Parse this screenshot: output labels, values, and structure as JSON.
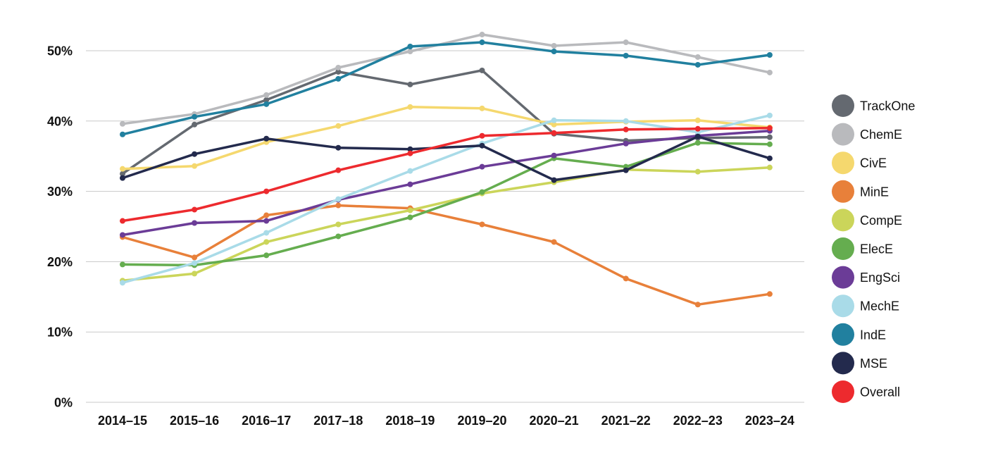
{
  "chart_data": {
    "type": "line",
    "title": "",
    "xlabel": "",
    "ylabel": "",
    "categories": [
      "2014–15",
      "2015–16",
      "2016–17",
      "2017–18",
      "2018–19",
      "2019–20",
      "2020–21",
      "2021–22",
      "2022–23",
      "2023–24"
    ],
    "ylim": [
      0,
      50
    ],
    "yticks": [
      {
        "value": 0,
        "label": "0%"
      },
      {
        "value": 10,
        "label": "10%"
      },
      {
        "value": 20,
        "label": "20%"
      },
      {
        "value": 30,
        "label": "30%"
      },
      {
        "value": 40,
        "label": "40%"
      },
      {
        "value": 50,
        "label": "50%"
      }
    ],
    "grid": true,
    "legend_position": "right",
    "series": [
      {
        "name": "TrackOne",
        "color": "#646970",
        "values": [
          32.5,
          39.5,
          43.0,
          47.0,
          45.2,
          47.2,
          38.2,
          37.2,
          37.6,
          37.7
        ]
      },
      {
        "name": "ChemE",
        "color": "#b9babd",
        "values": [
          39.6,
          41.0,
          43.7,
          47.6,
          49.9,
          52.3,
          50.7,
          51.2,
          49.1,
          46.9
        ]
      },
      {
        "name": "CivE",
        "color": "#f5d86e",
        "values": [
          33.2,
          33.6,
          37.0,
          39.3,
          42.0,
          41.8,
          39.5,
          39.9,
          40.1,
          39.1
        ]
      },
      {
        "name": "MinE",
        "color": "#e8803a",
        "values": [
          23.5,
          20.6,
          26.6,
          28.0,
          27.6,
          25.3,
          22.8,
          17.6,
          13.9,
          15.4
        ]
      },
      {
        "name": "CompE",
        "color": "#cbd55a",
        "values": [
          17.3,
          18.3,
          22.8,
          25.3,
          27.3,
          29.7,
          31.3,
          33.1,
          32.8,
          33.4
        ]
      },
      {
        "name": "ElecE",
        "color": "#65ad4f",
        "values": [
          19.6,
          19.5,
          20.9,
          23.6,
          26.3,
          29.9,
          34.7,
          33.5,
          36.9,
          36.7
        ]
      },
      {
        "name": "EngSci",
        "color": "#6b3c97",
        "values": [
          23.8,
          25.5,
          25.8,
          28.8,
          31.0,
          33.5,
          35.1,
          36.8,
          37.9,
          38.6
        ]
      },
      {
        "name": "MechE",
        "color": "#a9dbe8",
        "values": [
          17.0,
          19.8,
          24.1,
          28.9,
          32.9,
          36.8,
          40.1,
          40.0,
          38.4,
          40.8
        ]
      },
      {
        "name": "IndE",
        "color": "#21809f",
        "values": [
          38.1,
          40.6,
          42.4,
          46.0,
          50.6,
          51.2,
          49.9,
          49.3,
          48.0,
          49.4
        ]
      },
      {
        "name": "MSE",
        "color": "#232a4d",
        "values": [
          31.9,
          35.3,
          37.5,
          36.2,
          36.0,
          36.5,
          31.6,
          33.0,
          37.8,
          34.7
        ]
      },
      {
        "name": "Overall",
        "color": "#ed2a2e",
        "values": [
          25.8,
          27.4,
          30.0,
          33.0,
          35.4,
          37.9,
          38.3,
          38.8,
          38.9,
          39.0
        ]
      }
    ]
  }
}
